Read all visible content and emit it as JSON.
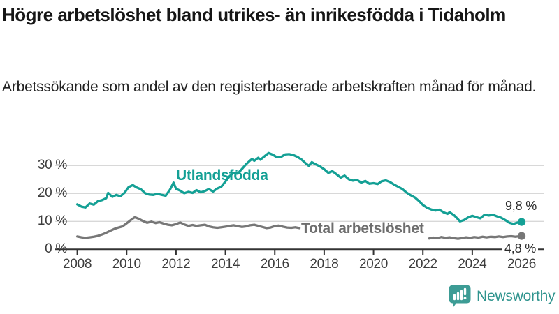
{
  "header": {
    "title": "Högre arbetslöshet bland utrikes- än inrikesfödda i Tidaholm",
    "subtitle": "Arbetssökande som andel av den registerbaserade arbetskraften månad för månad."
  },
  "branding": {
    "logo_text": "Newsworthy",
    "logo_icon": "bar-chart-speech-bubble-icon",
    "brand_color": "#2f948e",
    "icon_fill": "#3d9c95"
  },
  "colors": {
    "series_foreign_born": "#14a095",
    "series_total": "#777777",
    "series_total_label": "#6e6e6e",
    "gridline": "#d8d8d8",
    "axis": "#333333",
    "tick_text": "#3d3d3d",
    "value_label_text": "#2b2b2b"
  },
  "chart_data": {
    "type": "line",
    "title": "Högre arbetslöshet bland utrikes- än inrikesfödda i Tidaholm",
    "subtitle": "Arbetssökande som andel av den registerbaserade arbetskraften månad för månad.",
    "xlabel": "",
    "ylabel": "",
    "unit": "%",
    "grid": "horizontal",
    "legend_position": "inline-labels",
    "xlim": [
      2007.1,
      2026.9
    ],
    "ylim": [
      0,
      36
    ],
    "x_ticks": [
      2008,
      2010,
      2012,
      2014,
      2016,
      2018,
      2020,
      2022,
      2024,
      2026
    ],
    "y_ticks": [
      {
        "value": 0,
        "label": "0 %"
      },
      {
        "value": 10,
        "label": "10 %"
      },
      {
        "value": 20,
        "label": "20 %"
      },
      {
        "value": 30,
        "label": "30 %"
      }
    ],
    "series": [
      {
        "name": "Utlandsfödda",
        "color": "#14a095",
        "end_label": "9,8 %",
        "end_value": 9.8,
        "segments": [
          [
            [
              2008.0,
              16.1
            ],
            [
              2008.17,
              15.3
            ],
            [
              2008.33,
              15.0
            ],
            [
              2008.5,
              16.4
            ],
            [
              2008.67,
              16.0
            ],
            [
              2008.83,
              17.2
            ],
            [
              2009.0,
              17.6
            ],
            [
              2009.17,
              18.3
            ],
            [
              2009.25,
              20.2
            ],
            [
              2009.42,
              18.8
            ],
            [
              2009.58,
              19.5
            ],
            [
              2009.75,
              19.0
            ],
            [
              2009.92,
              20.3
            ],
            [
              2010.08,
              22.3
            ],
            [
              2010.25,
              23.0
            ],
            [
              2010.42,
              22.1
            ],
            [
              2010.58,
              21.5
            ],
            [
              2010.75,
              20.1
            ],
            [
              2010.92,
              19.6
            ],
            [
              2011.08,
              19.5
            ],
            [
              2011.25,
              19.9
            ],
            [
              2011.42,
              19.5
            ],
            [
              2011.58,
              19.2
            ],
            [
              2011.75,
              21.3
            ],
            [
              2011.9,
              23.9
            ],
            [
              2012.0,
              21.7
            ],
            [
              2012.17,
              21.0
            ],
            [
              2012.33,
              20.1
            ],
            [
              2012.5,
              20.6
            ],
            [
              2012.67,
              20.2
            ],
            [
              2012.83,
              21.2
            ],
            [
              2013.0,
              20.4
            ],
            [
              2013.17,
              20.9
            ],
            [
              2013.33,
              21.6
            ],
            [
              2013.5,
              20.7
            ],
            [
              2013.67,
              21.8
            ],
            [
              2013.83,
              22.4
            ],
            [
              2014.0,
              24.3
            ],
            [
              2014.17,
              26.2
            ],
            [
              2014.33,
              27.4
            ],
            [
              2014.5,
              27.1
            ],
            [
              2014.67,
              28.8
            ],
            [
              2014.83,
              30.4
            ],
            [
              2015.0,
              31.8
            ],
            [
              2015.08,
              32.4
            ],
            [
              2015.17,
              31.7
            ],
            [
              2015.33,
              32.8
            ],
            [
              2015.42,
              32.1
            ],
            [
              2015.58,
              33.3
            ],
            [
              2015.75,
              34.5
            ],
            [
              2015.92,
              33.9
            ],
            [
              2016.08,
              33.0
            ],
            [
              2016.25,
              33.1
            ],
            [
              2016.42,
              34.0
            ],
            [
              2016.58,
              34.1
            ],
            [
              2016.75,
              33.8
            ],
            [
              2016.92,
              33.1
            ],
            [
              2017.08,
              32.2
            ],
            [
              2017.25,
              30.8
            ],
            [
              2017.38,
              29.9
            ],
            [
              2017.5,
              31.2
            ],
            [
              2017.67,
              30.4
            ],
            [
              2017.83,
              29.7
            ],
            [
              2018.0,
              28.7
            ],
            [
              2018.17,
              27.4
            ],
            [
              2018.33,
              28.0
            ],
            [
              2018.5,
              26.9
            ],
            [
              2018.67,
              25.7
            ],
            [
              2018.83,
              26.4
            ],
            [
              2019.0,
              25.1
            ],
            [
              2019.17,
              24.6
            ],
            [
              2019.33,
              24.9
            ],
            [
              2019.5,
              23.9
            ],
            [
              2019.67,
              24.5
            ],
            [
              2019.83,
              23.5
            ],
            [
              2020.0,
              23.7
            ],
            [
              2020.17,
              23.4
            ],
            [
              2020.33,
              24.4
            ],
            [
              2020.5,
              24.7
            ],
            [
              2020.67,
              24.1
            ],
            [
              2020.83,
              23.2
            ],
            [
              2021.0,
              22.4
            ],
            [
              2021.17,
              21.6
            ],
            [
              2021.33,
              20.4
            ],
            [
              2021.5,
              19.4
            ],
            [
              2021.67,
              18.6
            ],
            [
              2021.83,
              17.4
            ],
            [
              2022.0,
              15.9
            ],
            [
              2022.17,
              14.9
            ],
            [
              2022.33,
              14.3
            ],
            [
              2022.5,
              13.9
            ],
            [
              2022.67,
              14.2
            ],
            [
              2022.83,
              13.3
            ],
            [
              2023.0,
              12.7
            ],
            [
              2023.08,
              13.3
            ],
            [
              2023.25,
              12.3
            ],
            [
              2023.42,
              10.8
            ],
            [
              2023.5,
              10.0
            ],
            [
              2023.67,
              10.5
            ],
            [
              2023.83,
              11.4
            ],
            [
              2024.0,
              12.0
            ],
            [
              2024.17,
              11.5
            ],
            [
              2024.33,
              11.1
            ],
            [
              2024.5,
              12.4
            ],
            [
              2024.67,
              12.1
            ],
            [
              2024.83,
              12.4
            ],
            [
              2025.0,
              11.8
            ],
            [
              2025.17,
              11.3
            ],
            [
              2025.33,
              10.5
            ],
            [
              2025.5,
              9.5
            ],
            [
              2025.67,
              9.1
            ],
            [
              2025.83,
              9.6
            ],
            [
              2025.92,
              9.2
            ],
            [
              2026.0,
              9.8
            ]
          ]
        ]
      },
      {
        "name": "Total arbetslöshet",
        "color": "#777777",
        "end_label": "4,8 %",
        "end_value": 4.8,
        "segments": [
          [
            [
              2008.0,
              4.6
            ],
            [
              2008.17,
              4.3
            ],
            [
              2008.33,
              4.1
            ],
            [
              2008.5,
              4.3
            ],
            [
              2008.67,
              4.5
            ],
            [
              2008.83,
              4.8
            ],
            [
              2009.0,
              5.3
            ],
            [
              2009.17,
              5.9
            ],
            [
              2009.33,
              6.6
            ],
            [
              2009.5,
              7.3
            ],
            [
              2009.67,
              7.8
            ],
            [
              2009.83,
              8.2
            ],
            [
              2010.0,
              9.3
            ],
            [
              2010.17,
              10.5
            ],
            [
              2010.33,
              11.5
            ],
            [
              2010.5,
              10.9
            ],
            [
              2010.67,
              10.1
            ],
            [
              2010.83,
              9.5
            ],
            [
              2011.0,
              9.9
            ],
            [
              2011.17,
              9.4
            ],
            [
              2011.33,
              9.7
            ],
            [
              2011.5,
              9.2
            ],
            [
              2011.67,
              8.8
            ],
            [
              2011.83,
              8.6
            ],
            [
              2012.0,
              9.0
            ],
            [
              2012.17,
              9.6
            ],
            [
              2012.33,
              8.9
            ],
            [
              2012.5,
              8.4
            ],
            [
              2012.67,
              8.7
            ],
            [
              2012.83,
              8.4
            ],
            [
              2013.0,
              8.6
            ],
            [
              2013.17,
              8.8
            ],
            [
              2013.33,
              8.2
            ],
            [
              2013.5,
              7.9
            ],
            [
              2013.67,
              7.7
            ],
            [
              2013.83,
              7.9
            ],
            [
              2014.0,
              8.1
            ],
            [
              2014.17,
              8.4
            ],
            [
              2014.33,
              8.6
            ],
            [
              2014.5,
              8.3
            ],
            [
              2014.67,
              8.0
            ],
            [
              2014.83,
              8.2
            ],
            [
              2015.0,
              8.6
            ],
            [
              2015.17,
              8.8
            ],
            [
              2015.33,
              8.4
            ],
            [
              2015.5,
              8.0
            ],
            [
              2015.67,
              7.6
            ],
            [
              2015.83,
              7.8
            ],
            [
              2016.0,
              8.3
            ],
            [
              2016.17,
              8.5
            ],
            [
              2016.33,
              8.1
            ],
            [
              2016.5,
              7.8
            ],
            [
              2016.67,
              7.7
            ],
            [
              2016.83,
              7.9
            ],
            [
              2017.0,
              7.6
            ]
          ],
          [
            [
              2022.25,
              3.9
            ],
            [
              2022.42,
              4.2
            ],
            [
              2022.58,
              4.0
            ],
            [
              2022.75,
              4.4
            ],
            [
              2022.92,
              4.1
            ],
            [
              2023.08,
              4.3
            ],
            [
              2023.25,
              4.0
            ],
            [
              2023.42,
              3.8
            ],
            [
              2023.58,
              4.0
            ],
            [
              2023.75,
              4.3
            ],
            [
              2023.92,
              4.1
            ],
            [
              2024.08,
              4.4
            ],
            [
              2024.25,
              4.2
            ],
            [
              2024.42,
              4.5
            ],
            [
              2024.58,
              4.3
            ],
            [
              2024.75,
              4.5
            ],
            [
              2024.92,
              4.4
            ],
            [
              2025.08,
              4.6
            ],
            [
              2025.25,
              4.4
            ],
            [
              2025.42,
              4.6
            ],
            [
              2025.58,
              4.7
            ],
            [
              2025.75,
              4.5
            ],
            [
              2025.92,
              4.7
            ],
            [
              2026.0,
              4.8
            ]
          ]
        ]
      }
    ]
  }
}
